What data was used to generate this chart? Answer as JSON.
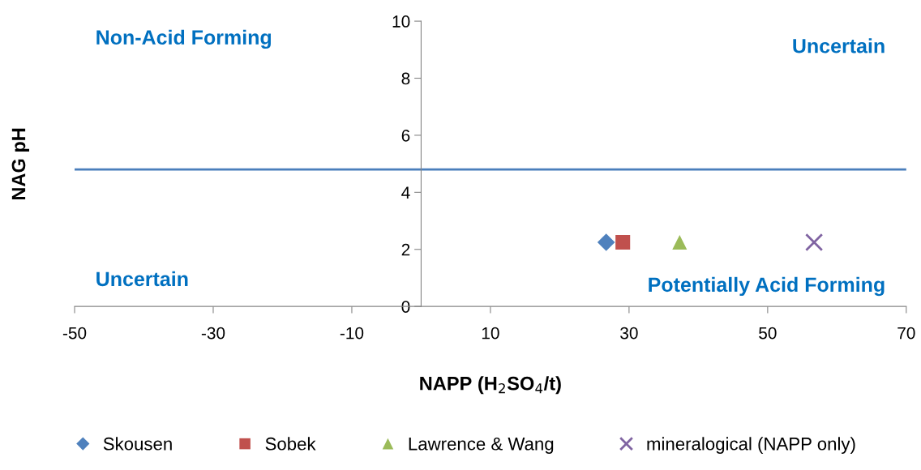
{
  "chart_data": {
    "type": "scatter",
    "xlabel": "NAPP (H$_{2}$SO$_{4}$/t)",
    "ylabel": "NAG pH",
    "xlim": [
      -50,
      70
    ],
    "xticks": [
      -50,
      -30,
      -10,
      10,
      30,
      50,
      70
    ],
    "ylim": [
      0,
      10
    ],
    "yticks": [
      0,
      2,
      4,
      6,
      8,
      10
    ],
    "series": [
      {
        "name": "Skousen",
        "color": "#4f81bd",
        "marker": "diamond",
        "x": [
          26.7
        ],
        "values": [
          2.25
        ]
      },
      {
        "name": "Sobek",
        "color": "#c0504d",
        "marker": "square",
        "x": [
          29.1
        ],
        "values": [
          2.25
        ]
      },
      {
        "name": "Lawrence & Wang",
        "color": "#9bbb59",
        "marker": "triangle",
        "x": [
          37.3
        ],
        "values": [
          2.25
        ]
      },
      {
        "name": "mineralogical (NAPP only)",
        "color": "#8064a2",
        "marker": "cross",
        "x": [
          56.7
        ],
        "values": [
          2.25
        ]
      }
    ],
    "ref_lines": [
      {
        "axis": "y",
        "value": 4.8,
        "color": "#4a7ebb"
      }
    ],
    "annotations": [
      "Non-Acid Forming",
      "Uncertain",
      "Uncertain",
      "Potentially Acid Forming"
    ],
    "grid": false,
    "legend": "bottom"
  }
}
